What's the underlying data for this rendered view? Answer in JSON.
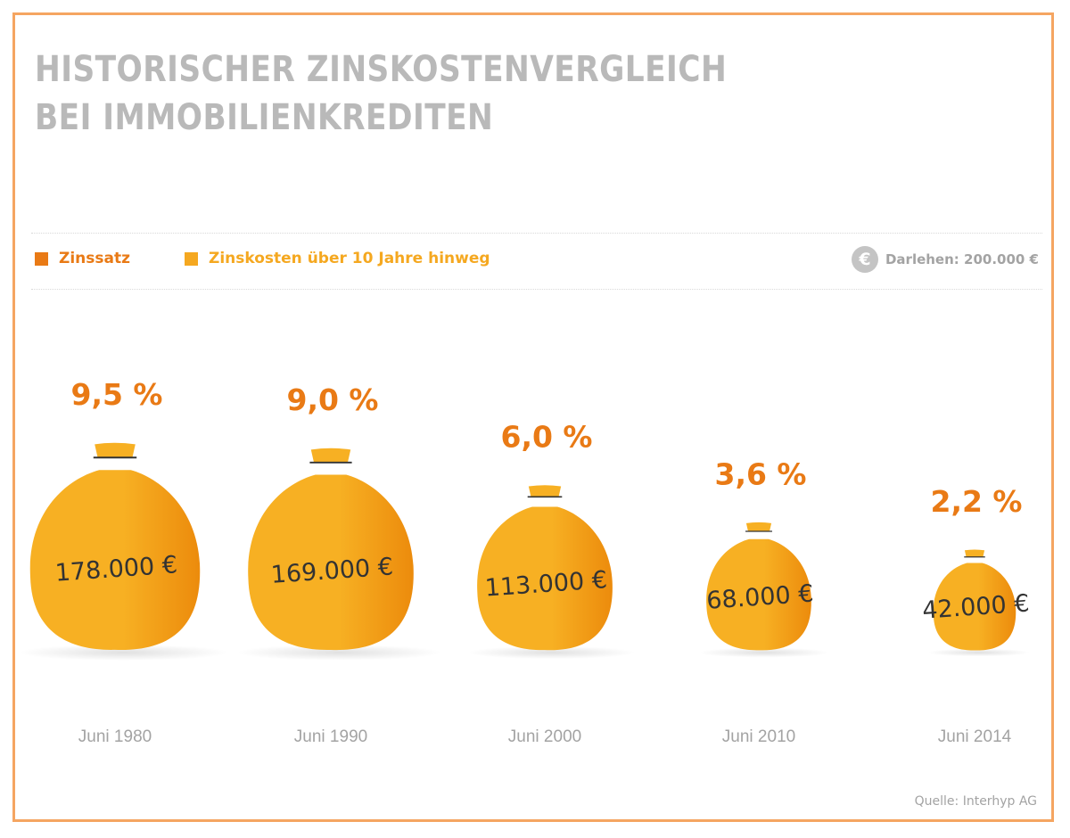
{
  "colors": {
    "frame": "#f5a561",
    "rate": "#e97a15",
    "bag_light": "#f7b023",
    "bag_dark": "#ec8b0c",
    "bag_cord": "#333333",
    "cost_text": "#333333",
    "title": "#b9b9b9",
    "muted": "#a3a3a3",
    "legend_rate": "#e97a15",
    "legend_cost": "#f5a820"
  },
  "icons": {
    "bag": "money-bag-icon",
    "euro": "euro-coin-icon"
  },
  "chart_data": {
    "type": "bar",
    "title": "HISTORISCHER ZINSKOSTENVERGLEICH BEI IMMOBILIENKREDITEN",
    "title_lines": [
      "HISTORISCHER ZINSKOSTENVERGLEICH",
      "BEI IMMOBILIENKREDITEN"
    ],
    "legend": {
      "placement": "top-left",
      "rate_label": "Zinssatz",
      "cost_label": "Zinskosten über 10 Jahre hinweg"
    },
    "loan_note": "Darlehen: 200.000 €",
    "categories": [
      "Juni 1980",
      "Juni 1990",
      "Juni 2000",
      "Juni 2010",
      "Juni 2014"
    ],
    "series": [
      {
        "name": "Zinssatz",
        "values": [
          9.5,
          9.0,
          6.0,
          3.6,
          2.2
        ],
        "labels": [
          "9,5 %",
          "9,0 %",
          "6,0 %",
          "3,6 %",
          "2,2 %"
        ]
      },
      {
        "name": "Zinskosten über 10 Jahre hinweg",
        "values": [
          178000,
          169000,
          113000,
          68000,
          42000
        ],
        "labels": [
          "178.000 €",
          "169.000 €",
          "113.000 €",
          "68.000 €",
          "42.000 €"
        ]
      }
    ],
    "source": "Quelle: Interhyp AG"
  }
}
